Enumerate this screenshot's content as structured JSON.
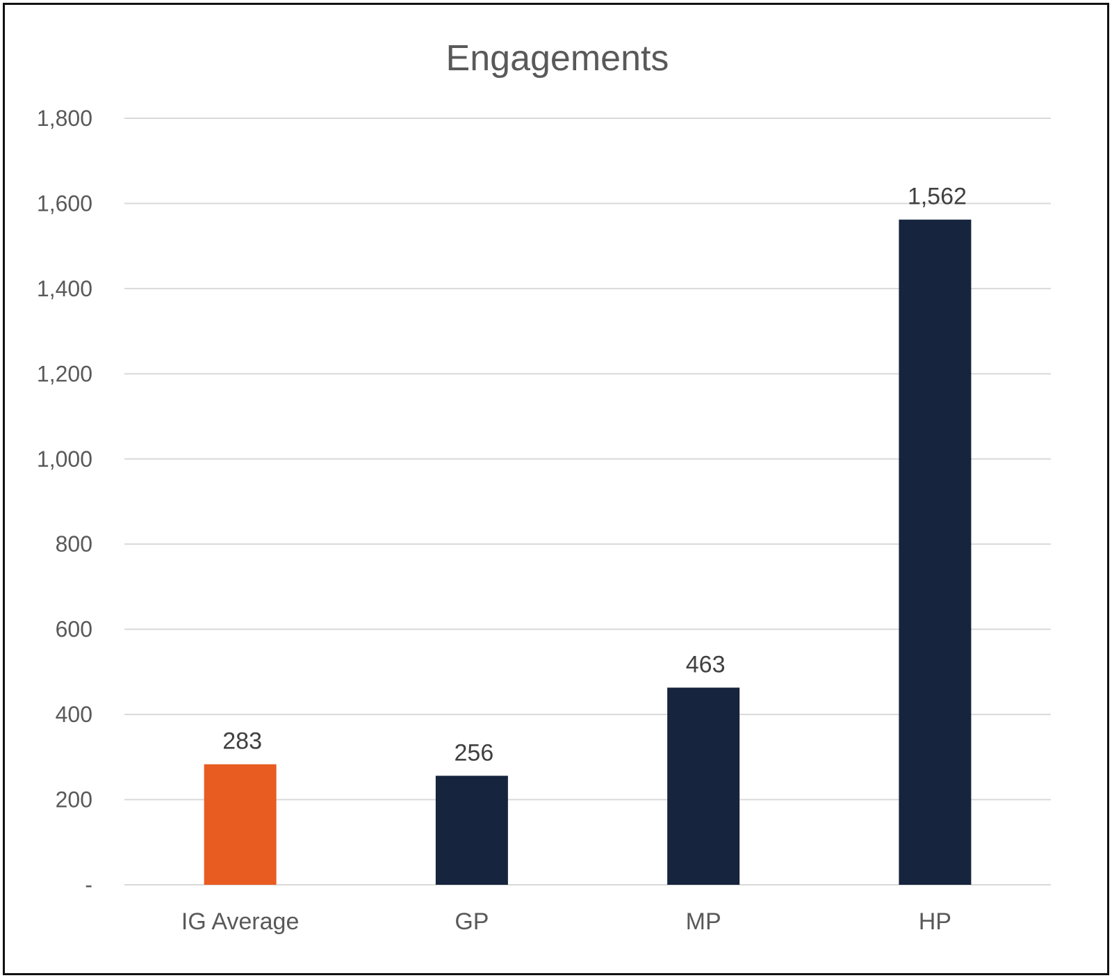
{
  "chart_data": {
    "type": "bar",
    "title": "Engagements",
    "categories": [
      "IG Average",
      "GP",
      "MP",
      "HP"
    ],
    "values": [
      283,
      256,
      463,
      1562
    ],
    "data_labels": [
      "283",
      "256",
      "463",
      "1,562"
    ],
    "bar_colors": [
      "#e85c21",
      "#16243d",
      "#16243d",
      "#16243d"
    ],
    "ylim": [
      0,
      1800
    ],
    "yticks": [
      0,
      200,
      400,
      600,
      800,
      1000,
      1200,
      1400,
      1600,
      1800
    ],
    "ytick_labels": [
      "-",
      "200",
      "400",
      "600",
      "800",
      "1,000",
      "1,200",
      "1,400",
      "1,600",
      "1,800"
    ],
    "grid": true,
    "legend": "none"
  }
}
